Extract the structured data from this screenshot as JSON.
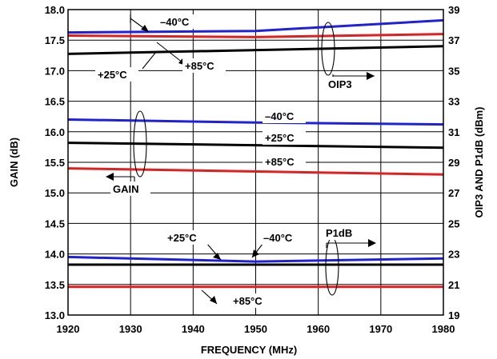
{
  "chart_data": {
    "type": "line",
    "xlabel": "FREQUENCY (MHz)",
    "ylabel_left": "GAIN (dB)",
    "ylabel_right": "OIP3 AND P1dB (dBm)",
    "xlim": [
      1920,
      1980
    ],
    "ylim_left": [
      13.0,
      18.0
    ],
    "ylim_right": [
      19,
      39
    ],
    "grid": true,
    "x_ticks": [
      "1920",
      "1930",
      "1940",
      "1950",
      "1960",
      "1970",
      "1980"
    ],
    "y_left_ticks": [
      "13.0",
      "13.5",
      "14.0",
      "14.5",
      "15.0",
      "15.5",
      "16.0",
      "16.5",
      "17.0",
      "17.5",
      "18.0"
    ],
    "y_right_ticks": [
      "19",
      "21",
      "23",
      "25",
      "27",
      "29",
      "31",
      "33",
      "35",
      "37",
      "39"
    ],
    "series": [
      {
        "group": "OIP3",
        "temp": "-40°C",
        "color": "#1f1fe0",
        "axis": "right",
        "x": [
          1920,
          1950,
          1980
        ],
        "y": [
          37.5,
          37.6,
          38.3
        ]
      },
      {
        "group": "OIP3",
        "temp": "+85°C",
        "color": "#e01f1f",
        "axis": "right",
        "x": [
          1920,
          1950,
          1980
        ],
        "y": [
          37.3,
          37.2,
          37.4
        ]
      },
      {
        "group": "OIP3",
        "temp": "+25°C",
        "color": "#000000",
        "axis": "right",
        "x": [
          1920,
          1980
        ],
        "y": [
          36.1,
          36.6
        ]
      },
      {
        "group": "GAIN",
        "temp": "-40°C",
        "color": "#1f1fe0",
        "axis": "left",
        "x": [
          1920,
          1950,
          1980
        ],
        "y": [
          16.2,
          16.15,
          16.12
        ]
      },
      {
        "group": "GAIN",
        "temp": "+25°C",
        "color": "#000000",
        "axis": "left",
        "x": [
          1920,
          1980
        ],
        "y": [
          15.82,
          15.74
        ]
      },
      {
        "group": "GAIN",
        "temp": "+85°C",
        "color": "#e01f1f",
        "axis": "left",
        "x": [
          1920,
          1980
        ],
        "y": [
          15.4,
          15.3
        ]
      },
      {
        "group": "P1dB",
        "temp": "-40°C",
        "color": "#1f1fe0",
        "axis": "right",
        "x": [
          1920,
          1950,
          1980
        ],
        "y": [
          22.8,
          22.5,
          22.7
        ]
      },
      {
        "group": "P1dB",
        "temp": "+25°C",
        "color": "#000000",
        "axis": "right",
        "x": [
          1920,
          1980
        ],
        "y": [
          22.3,
          22.3
        ]
      },
      {
        "group": "P1dB",
        "temp": "+85°C",
        "color": "#e01f1f",
        "axis": "right",
        "x": [
          1920,
          1980
        ],
        "y": [
          20.85,
          20.85
        ]
      }
    ],
    "annotations": {
      "oip3_m40": "–40°C",
      "oip3_p25": "+25°C",
      "oip3_p85": "+85°C",
      "oip3_label": "OIP3",
      "gain_m40": "–40°C",
      "gain_p25": "+25°C",
      "gain_p85": "+85°C",
      "gain_label": "GAIN",
      "p1db_p25": "+25°C",
      "p1db_m40": "–40°C",
      "p1db_p85": "+85°C",
      "p1db_label": "P1dB"
    }
  }
}
